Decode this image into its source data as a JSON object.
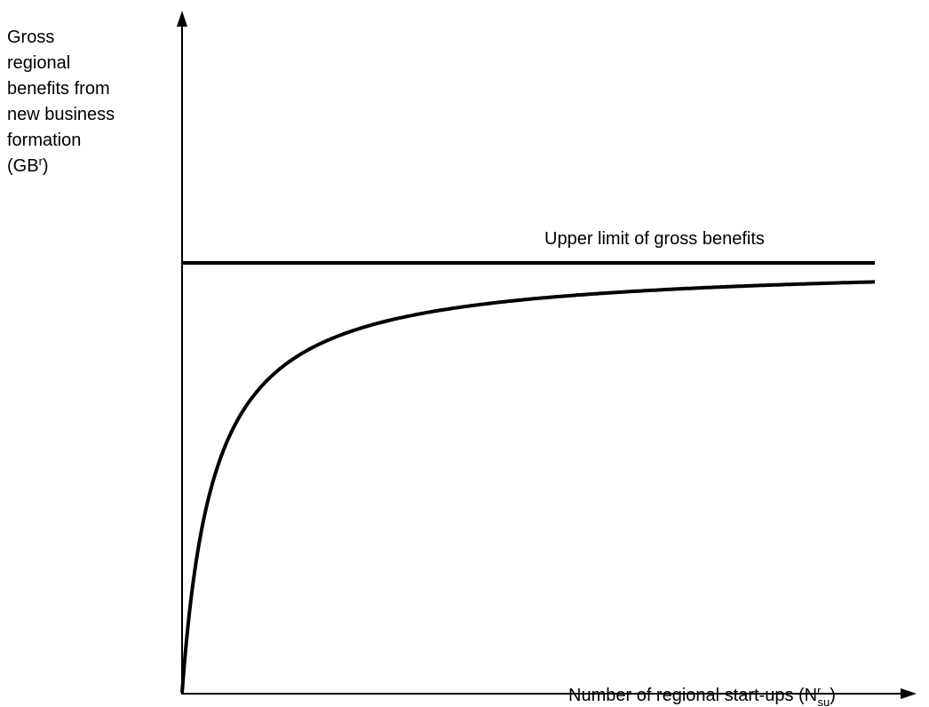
{
  "y_axis": {
    "label_lines": [
      "Gross",
      "regional",
      "benefits from",
      "new business",
      "formation"
    ],
    "label_last": {
      "prefix": "(GB",
      "sup": "r",
      "suffix": ")"
    }
  },
  "upper_limit": {
    "label": "Upper limit of gross benefits"
  },
  "x_axis": {
    "label": {
      "prefix": "Number of regional start-ups (N",
      "sup": "r",
      "sub": "su",
      "suffix": ")"
    }
  }
}
